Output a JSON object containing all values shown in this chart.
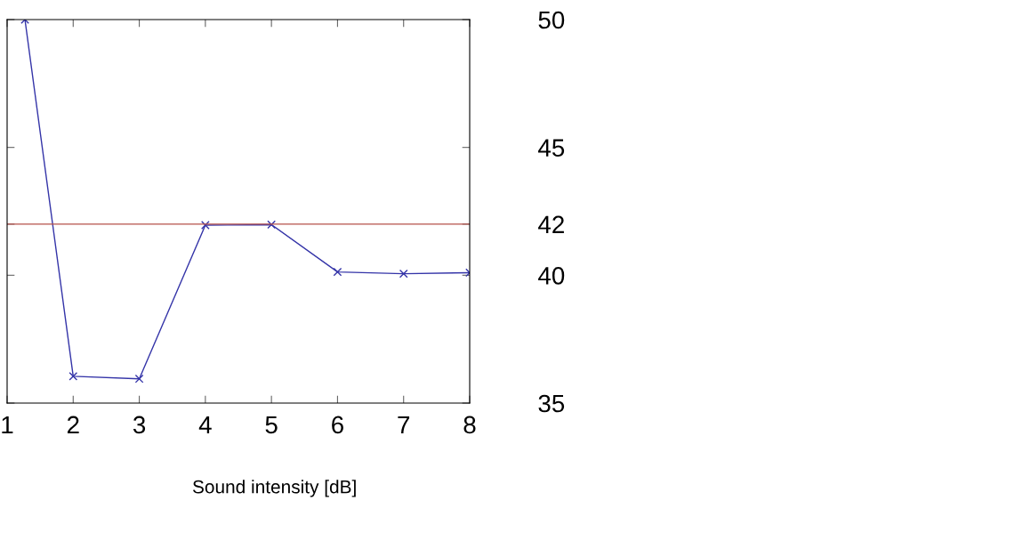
{
  "chart_data": {
    "type": "line",
    "xlabel": "Sound intensity [dB]",
    "series": [
      {
        "color": "#3434a8",
        "x": [
          1.27,
          2,
          3,
          4,
          5,
          6,
          7,
          8
        ],
        "values": [
          50,
          36.05,
          35.95,
          41.96,
          41.98,
          40.13,
          40.06,
          40.1
        ]
      }
    ],
    "xlim": [
      1,
      8
    ],
    "xticks": [
      1,
      2,
      3,
      4,
      5,
      6,
      7,
      8
    ],
    "ylim": [
      35,
      50
    ],
    "yticks": [
      35,
      40,
      42,
      45,
      50
    ],
    "ref_lines": [
      {
        "axis": "y",
        "value": 42,
        "color": "#b5504a"
      }
    ],
    "marker": "cross",
    "line_style": "solid",
    "grid": false,
    "legend": false
  }
}
